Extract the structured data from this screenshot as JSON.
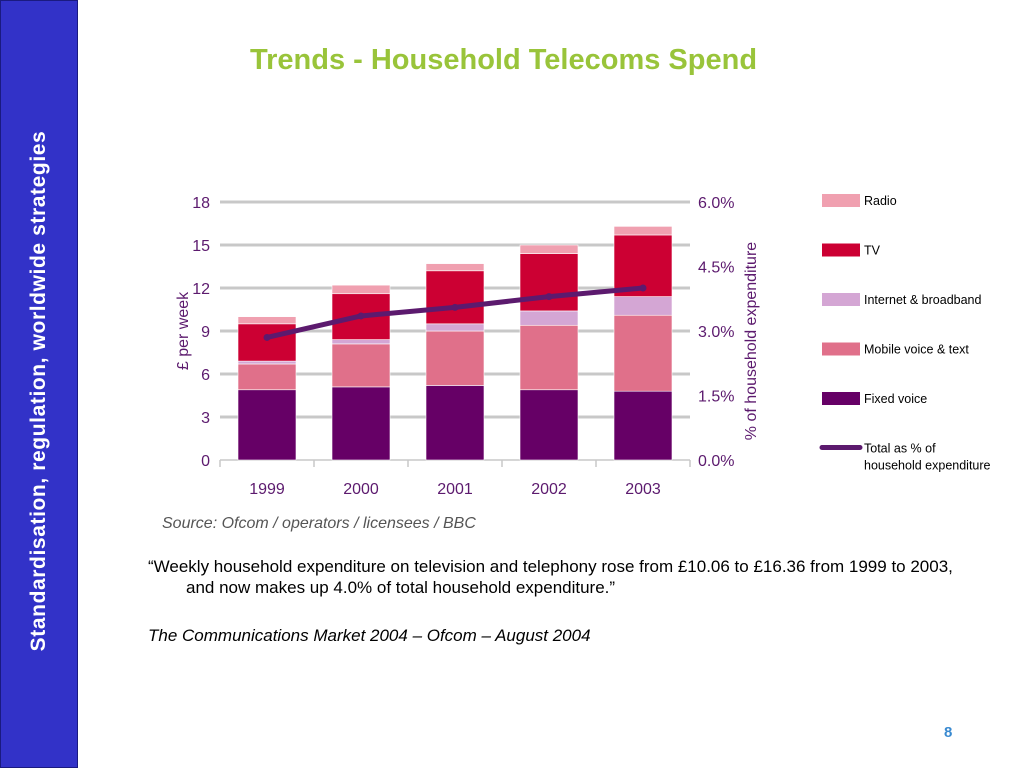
{
  "sidebar": {
    "text": "Standardisation, regulation, worldwide strategies"
  },
  "slide": {
    "title": "Trends - Household Telecoms Spend",
    "quote": "“Weekly household expenditure on television and telephony rose from £10.06 to £16.36 from 1999 to 2003, and now makes up 4.0% of total household expenditure.”",
    "citation": "The Communications Market 2004 – Ofcom – August 2004",
    "page_number": "8"
  },
  "colors": {
    "sidebar_bg": "#3232c8",
    "title": "#99c43a",
    "radio": "#f0a0b0",
    "tv": "#cc0033",
    "internet": "#d4a6d4",
    "mobile": "#e0708a",
    "fixed": "#660066",
    "line": "#5c1a6e",
    "grid": "#c8c8c8",
    "axis_text": "#5c1a6e"
  },
  "chart_data": {
    "type": "bar",
    "stacked": true,
    "categories": [
      "1999",
      "2000",
      "2001",
      "2002",
      "2003"
    ],
    "series": [
      {
        "name": "Fixed voice",
        "values": [
          4.9,
          5.1,
          5.2,
          4.9,
          4.8
        ]
      },
      {
        "name": "Mobile voice & text",
        "values": [
          1.8,
          3.0,
          3.8,
          4.5,
          5.3
        ]
      },
      {
        "name": "Internet & broadband",
        "values": [
          0.2,
          0.3,
          0.5,
          1.0,
          1.3
        ]
      },
      {
        "name": "TV",
        "values": [
          2.6,
          3.2,
          3.7,
          4.0,
          4.3
        ]
      },
      {
        "name": "Radio",
        "values": [
          0.5,
          0.6,
          0.5,
          0.6,
          0.6
        ]
      }
    ],
    "line_series": {
      "name": "Total as % of household expenditure",
      "values": [
        2.85,
        3.35,
        3.55,
        3.8,
        4.0
      ]
    },
    "ylim": [
      0,
      18
    ],
    "yticks": [
      "0",
      "3",
      "6",
      "9",
      "12",
      "15",
      "18"
    ],
    "y2lim": [
      0,
      6
    ],
    "y2ticks": [
      "0.0%",
      "1.5%",
      "3.0%",
      "4.5%",
      "6.0%"
    ],
    "ylabel": "£ per week",
    "y2label": "% of household expenditure",
    "legend_order": [
      "Radio",
      "TV",
      "Internet & broadband",
      "Mobile voice & text",
      "Fixed voice",
      "Total as % of household expenditure"
    ],
    "legend": "right",
    "grid": true,
    "source": "Source: Ofcom / operators / licensees / BBC"
  }
}
